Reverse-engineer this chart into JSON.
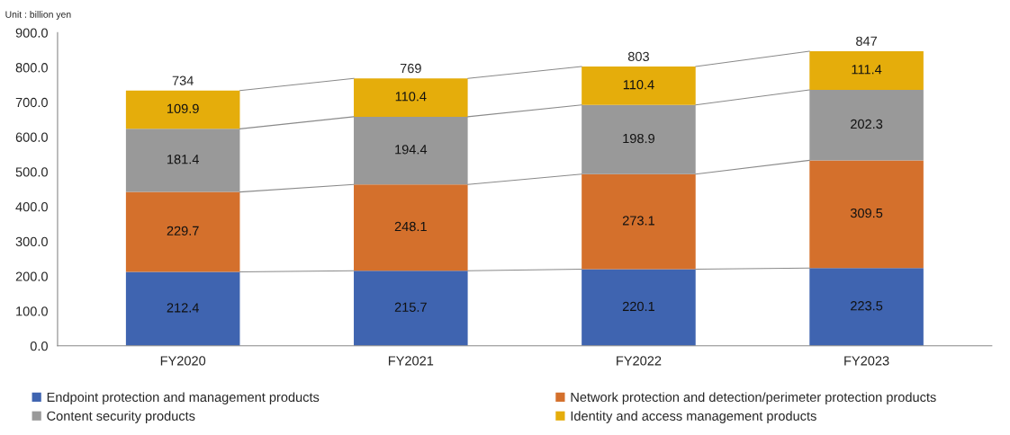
{
  "chart_data": {
    "type": "bar",
    "stacked": true,
    "categories": [
      "FY2020",
      "FY2021",
      "FY2022",
      "FY2023"
    ],
    "series": [
      {
        "name": "Endpoint protection and management products",
        "color": "#3f64b0",
        "values": [
          212.4,
          215.7,
          220.1,
          223.5
        ]
      },
      {
        "name": "Network protection and detection/perimeter protection products",
        "color": "#d4702c",
        "values": [
          229.7,
          248.1,
          273.1,
          309.5
        ]
      },
      {
        "name": "Content security products",
        "color": "#999999",
        "values": [
          181.4,
          194.4,
          198.9,
          202.3
        ]
      },
      {
        "name": "Identity and access management products",
        "color": "#e5ad0b",
        "values": [
          109.9,
          110.4,
          110.4,
          111.4
        ]
      }
    ],
    "totals": [
      "734",
      "769",
      "803",
      "847"
    ],
    "data_labels": true,
    "ylim": [
      0,
      900
    ],
    "yticks": [
      {
        "value": 0,
        "label": "0.0"
      },
      {
        "value": 100,
        "label": "100.0"
      },
      {
        "value": 200,
        "label": "200.0"
      },
      {
        "value": 300,
        "label": "300.0"
      },
      {
        "value": 400,
        "label": "400.0"
      },
      {
        "value": 500,
        "label": "500.0"
      },
      {
        "value": 600,
        "label": "600.0"
      },
      {
        "value": 700,
        "label": "700.0"
      },
      {
        "value": 800,
        "label": "800.0"
      },
      {
        "value": 900,
        "label": "900.0"
      }
    ],
    "annotations": [
      "Unit : billion yen"
    ],
    "legend": "bottom",
    "grid": false
  }
}
